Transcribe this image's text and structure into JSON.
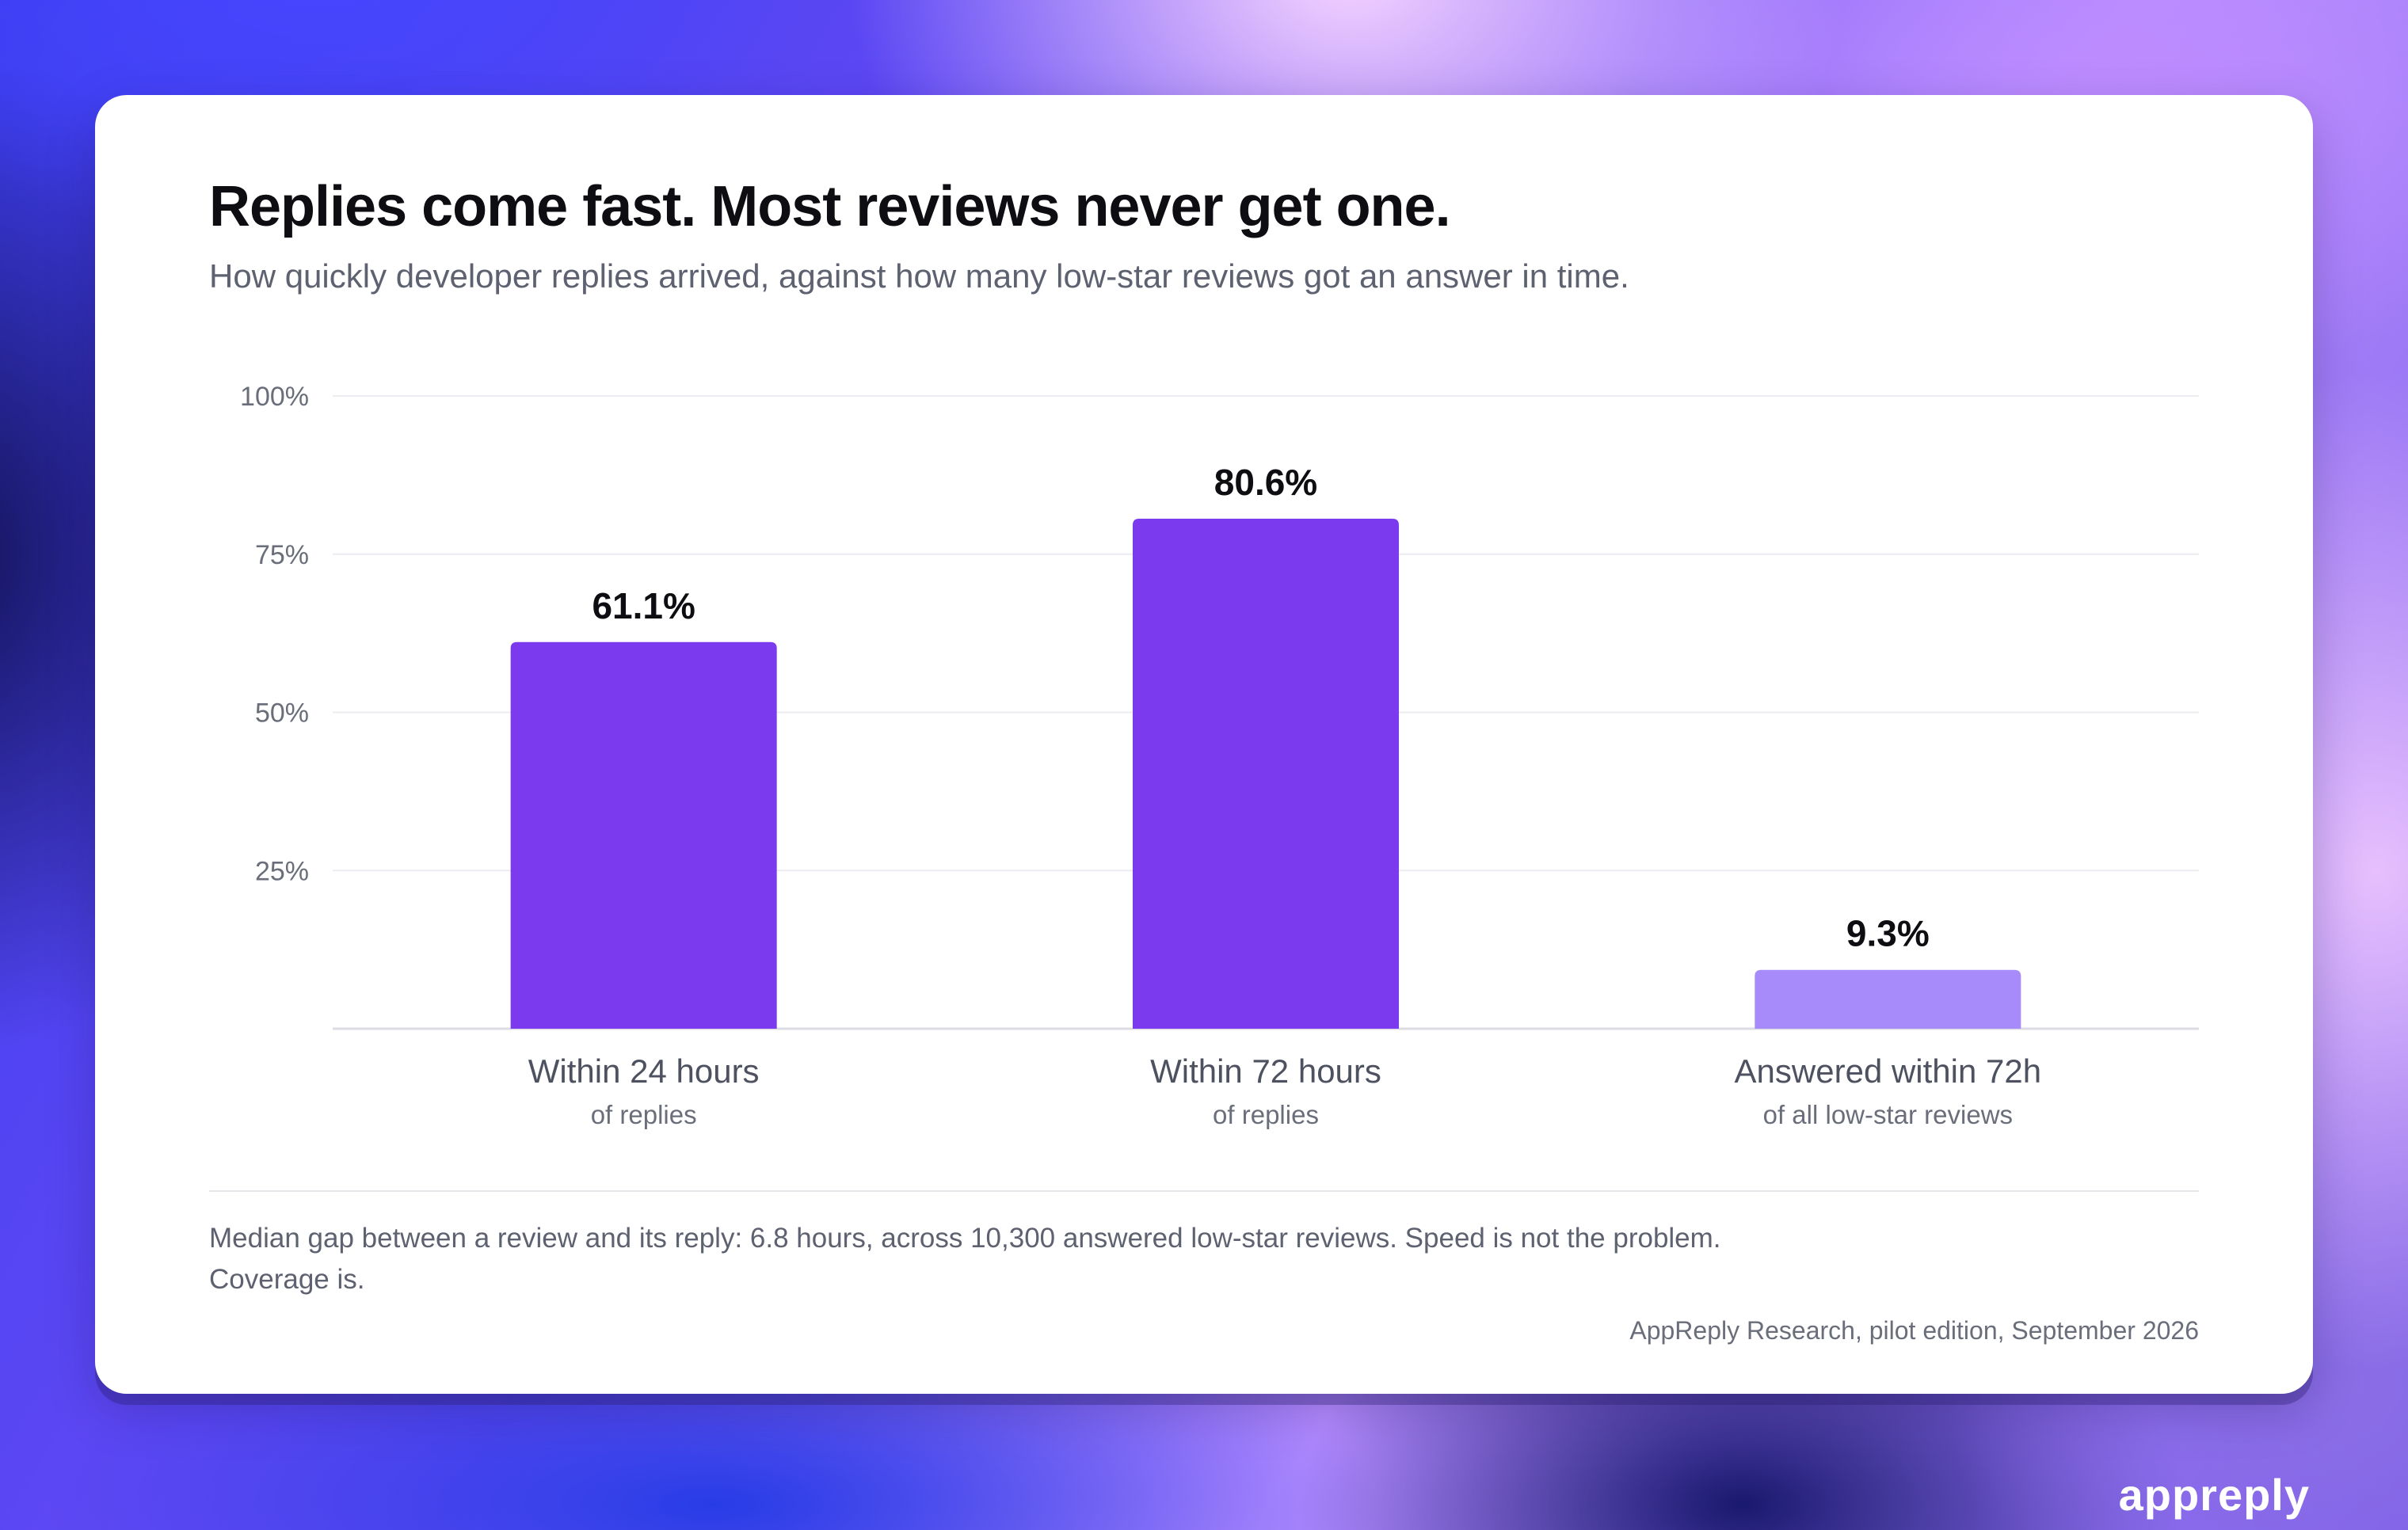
{
  "title": "Replies come fast. Most reviews never get one.",
  "subtitle": "How quickly developer replies arrived, against how many low-star reviews got an answer in time.",
  "note": "Median gap between a review and its reply: 6.8 hours, across 10,300 answered low-star reviews. Speed is not the problem. Coverage is.",
  "source": "AppReply Research, pilot edition, September 2026",
  "brand": "appreply",
  "colors": {
    "primary_bar": "#7b3aed",
    "highlight_bar": "#a78bfa",
    "gridline": "#ececf1",
    "axis": "#dcdce4"
  },
  "chart_data": {
    "type": "bar",
    "title": "Replies come fast. Most reviews never get one.",
    "subtitle": "How quickly developer replies arrived, against how many low-star reviews got an answer in time.",
    "categories": [
      "Within 24 hours",
      "Within 72 hours",
      "Answered within 72h"
    ],
    "category_sublabels": [
      "of replies",
      "of replies",
      "of all low-star reviews"
    ],
    "values": [
      61.1,
      80.6,
      9.3
    ],
    "value_labels": [
      "61.1%",
      "80.6%",
      "9.3%"
    ],
    "bar_colors": [
      "#7b3aed",
      "#7b3aed",
      "#a78bfa"
    ],
    "ylim": [
      0,
      100
    ],
    "yticks": [
      25,
      50,
      75,
      100
    ],
    "ytick_labels": [
      "25%",
      "50%",
      "75%",
      "100%"
    ],
    "xlabel": "",
    "ylabel": "",
    "grid": true
  }
}
